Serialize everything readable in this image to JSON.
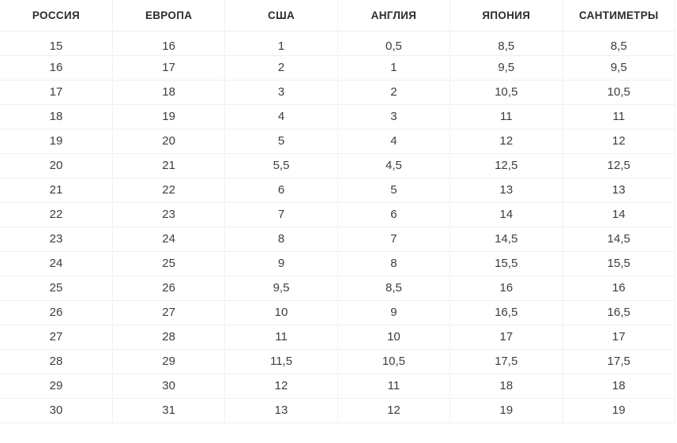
{
  "page": {
    "description": "Shoe size conversion table",
    "background": "#ffffff"
  },
  "colors": {
    "header_text": "#2b2b2b",
    "body_text": "#3d3d3d",
    "row_border": "#efefef",
    "col_border": "#f1f1f1",
    "background": "#ffffff"
  },
  "table": {
    "columns": [
      {
        "id": "russia",
        "label": "РОССИЯ"
      },
      {
        "id": "europe",
        "label": "ЕВРОПА"
      },
      {
        "id": "usa",
        "label": "США"
      },
      {
        "id": "england",
        "label": "АНГЛИЯ"
      },
      {
        "id": "japan",
        "label": "ЯПОНИЯ"
      },
      {
        "id": "centimeters",
        "label": "САНТИМЕТРЫ"
      }
    ],
    "rows": [
      [
        "15",
        "16",
        "1",
        "0,5",
        "8,5",
        "8,5"
      ],
      [
        "16",
        "17",
        "2",
        "1",
        "9,5",
        "9,5"
      ],
      [
        "17",
        "18",
        "3",
        "2",
        "10,5",
        "10,5"
      ],
      [
        "18",
        "19",
        "4",
        "3",
        "11",
        "11"
      ],
      [
        "19",
        "20",
        "5",
        "4",
        "12",
        "12"
      ],
      [
        "20",
        "21",
        "5,5",
        "4,5",
        "12,5",
        "12,5"
      ],
      [
        "21",
        "22",
        "6",
        "5",
        "13",
        "13"
      ],
      [
        "22",
        "23",
        "7",
        "6",
        "14",
        "14"
      ],
      [
        "23",
        "24",
        "8",
        "7",
        "14,5",
        "14,5"
      ],
      [
        "24",
        "25",
        "9",
        "8",
        "15,5",
        "15,5"
      ],
      [
        "25",
        "26",
        "9,5",
        "8,5",
        "16",
        "16"
      ],
      [
        "26",
        "27",
        "10",
        "9",
        "16,5",
        "16,5"
      ],
      [
        "27",
        "28",
        "11",
        "10",
        "17",
        "17"
      ],
      [
        "28",
        "29",
        "11,5",
        "10,5",
        "17,5",
        "17,5"
      ],
      [
        "29",
        "30",
        "12",
        "11",
        "18",
        "18"
      ],
      [
        "30",
        "31",
        "13",
        "12",
        "19",
        "19"
      ]
    ]
  }
}
